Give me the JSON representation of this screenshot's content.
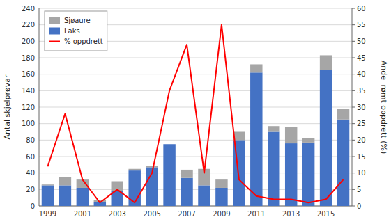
{
  "chart_data": {
    "type": "bar",
    "stacked": true,
    "grid": true,
    "legend": "upper left",
    "categories": [
      "1999",
      null,
      "2001",
      null,
      "2003",
      null,
      "2005",
      null,
      "2007",
      null,
      "2009",
      null,
      "2011",
      null,
      "2013",
      null,
      "2015",
      null
    ],
    "y_label": "Antal skjelprøvar",
    "y2_label": "Andel rømt oppdrett (%)",
    "ylim": [
      0,
      240
    ],
    "yticks": [
      0,
      20,
      40,
      60,
      80,
      100,
      120,
      140,
      160,
      180,
      200,
      220,
      240
    ],
    "y2lim": [
      0,
      60
    ],
    "y2ticks": [
      0,
      5,
      10,
      15,
      20,
      25,
      30,
      35,
      40,
      45,
      50,
      55,
      60
    ],
    "series": [
      {
        "name": "Laks",
        "type": "bar",
        "color": "#4472C4",
        "values": [
          25,
          25,
          22,
          5,
          18,
          43,
          47,
          75,
          34,
          25,
          22,
          80,
          162,
          90,
          76,
          77,
          165,
          105
        ]
      },
      {
        "name": "Sjøaure",
        "type": "bar",
        "color": "#A6A6A6",
        "values": [
          1,
          10,
          10,
          2,
          12,
          2,
          2,
          0,
          10,
          20,
          10,
          10,
          10,
          7,
          20,
          5,
          18,
          13
        ]
      },
      {
        "name": "% oppdrett",
        "type": "line",
        "axis": "y2",
        "color": "#FF0000",
        "values": [
          12,
          28,
          8,
          1,
          5,
          1,
          10,
          35,
          49,
          10,
          55,
          8,
          3,
          2,
          2,
          1,
          2,
          8
        ]
      }
    ]
  }
}
